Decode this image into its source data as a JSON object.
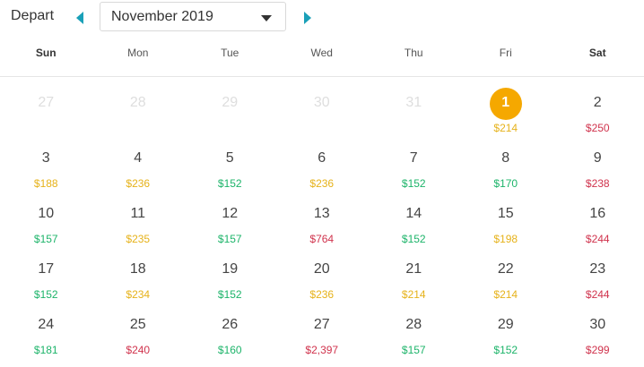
{
  "header": {
    "depart_label": "Depart",
    "month_value": "November 2019",
    "icons": {
      "prev": "left-triangle-icon",
      "next": "right-triangle-icon",
      "dropdown": "chevron-down-icon"
    },
    "accent": "#1aa0b8"
  },
  "weekdays": [
    "Sun",
    "Mon",
    "Tue",
    "Wed",
    "Thu",
    "Fri",
    "Sat"
  ],
  "colors": {
    "low": "#1db46a",
    "mid": "#e6b21a",
    "high": "#d0334d",
    "selected": "#f5a800",
    "muted": "#dedede"
  },
  "weeks": [
    [
      {
        "day": "27",
        "price": "",
        "level": "",
        "other": true
      },
      {
        "day": "28",
        "price": "",
        "level": "",
        "other": true
      },
      {
        "day": "29",
        "price": "",
        "level": "",
        "other": true
      },
      {
        "day": "30",
        "price": "",
        "level": "",
        "other": true
      },
      {
        "day": "31",
        "price": "",
        "level": "",
        "other": true
      },
      {
        "day": "1",
        "price": "$214",
        "level": "mid",
        "selected": true
      },
      {
        "day": "2",
        "price": "$250",
        "level": "high"
      }
    ],
    [
      {
        "day": "3",
        "price": "$188",
        "level": "mid"
      },
      {
        "day": "4",
        "price": "$236",
        "level": "mid"
      },
      {
        "day": "5",
        "price": "$152",
        "level": "low"
      },
      {
        "day": "6",
        "price": "$236",
        "level": "mid"
      },
      {
        "day": "7",
        "price": "$152",
        "level": "low"
      },
      {
        "day": "8",
        "price": "$170",
        "level": "low"
      },
      {
        "day": "9",
        "price": "$238",
        "level": "high"
      }
    ],
    [
      {
        "day": "10",
        "price": "$157",
        "level": "low"
      },
      {
        "day": "11",
        "price": "$235",
        "level": "mid"
      },
      {
        "day": "12",
        "price": "$157",
        "level": "low"
      },
      {
        "day": "13",
        "price": "$764",
        "level": "high"
      },
      {
        "day": "14",
        "price": "$152",
        "level": "low"
      },
      {
        "day": "15",
        "price": "$198",
        "level": "mid"
      },
      {
        "day": "16",
        "price": "$244",
        "level": "high"
      }
    ],
    [
      {
        "day": "17",
        "price": "$152",
        "level": "low"
      },
      {
        "day": "18",
        "price": "$234",
        "level": "mid"
      },
      {
        "day": "19",
        "price": "$152",
        "level": "low"
      },
      {
        "day": "20",
        "price": "$236",
        "level": "mid"
      },
      {
        "day": "21",
        "price": "$214",
        "level": "mid"
      },
      {
        "day": "22",
        "price": "$214",
        "level": "mid"
      },
      {
        "day": "23",
        "price": "$244",
        "level": "high"
      }
    ],
    [
      {
        "day": "24",
        "price": "$181",
        "level": "low"
      },
      {
        "day": "25",
        "price": "$240",
        "level": "high"
      },
      {
        "day": "26",
        "price": "$160",
        "level": "low"
      },
      {
        "day": "27",
        "price": "$2,397",
        "level": "high"
      },
      {
        "day": "28",
        "price": "$157",
        "level": "low"
      },
      {
        "day": "29",
        "price": "$152",
        "level": "low"
      },
      {
        "day": "30",
        "price": "$299",
        "level": "high"
      }
    ]
  ]
}
